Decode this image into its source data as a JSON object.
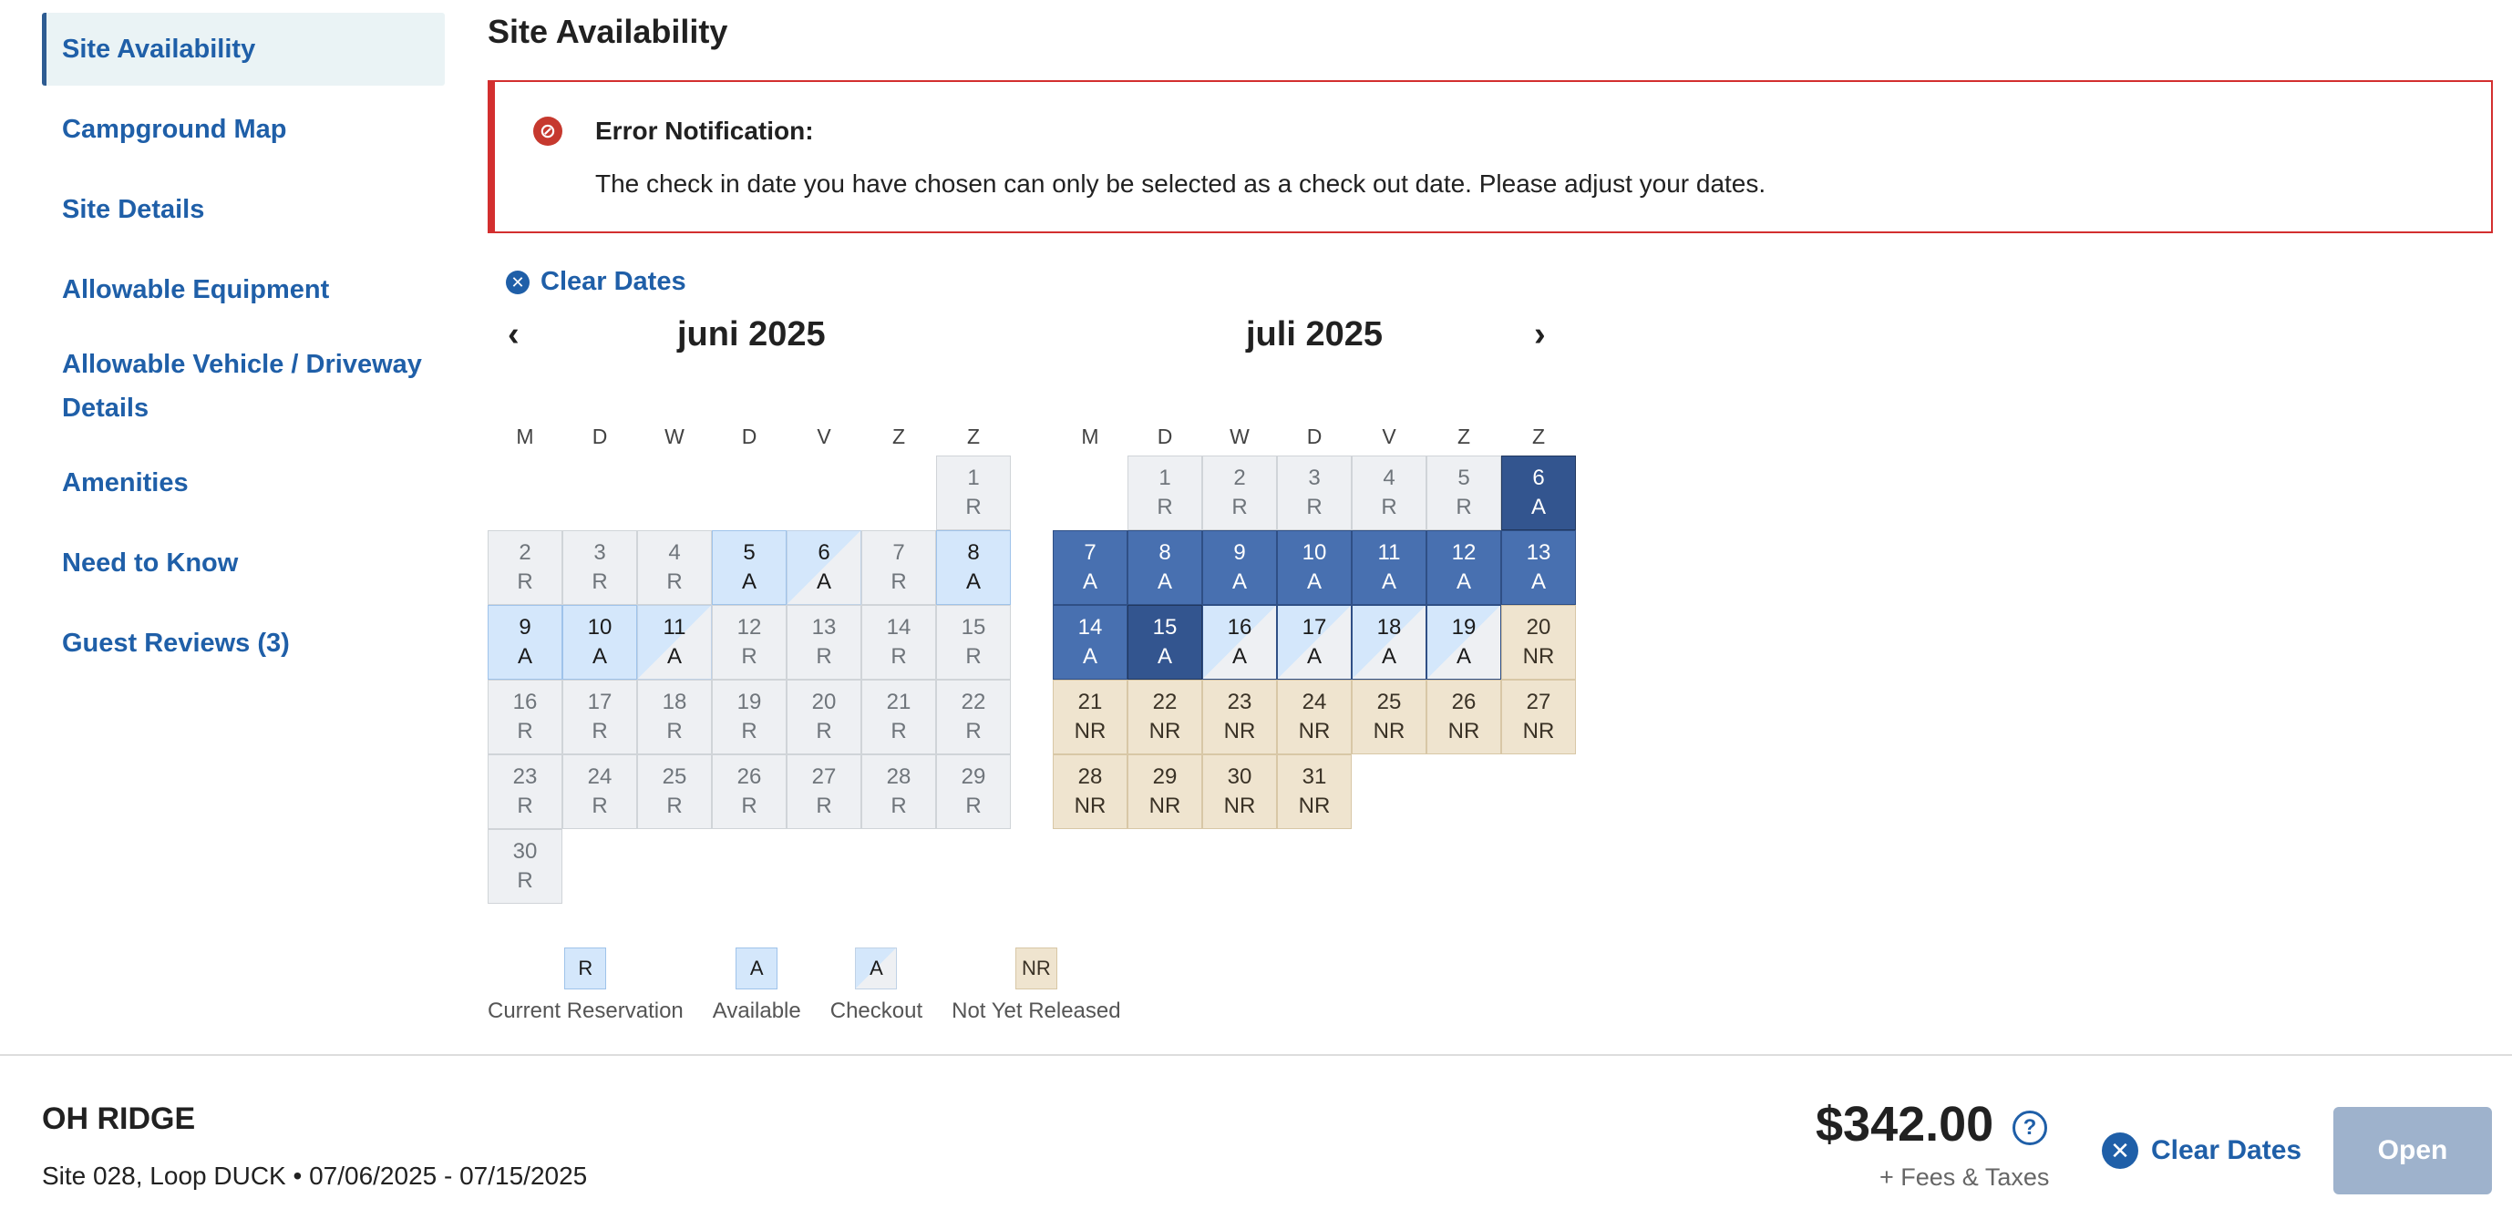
{
  "sidebar": {
    "items": [
      {
        "label": "Site Availability",
        "active": true
      },
      {
        "label": "Campground Map"
      },
      {
        "label": "Site Details"
      },
      {
        "label": "Allowable Equipment"
      },
      {
        "label": "Allowable Vehicle / Driveway Details"
      },
      {
        "label": "Amenities"
      },
      {
        "label": "Need to Know"
      },
      {
        "label": "Guest Reviews (3)"
      }
    ]
  },
  "main": {
    "title": "Site Availability",
    "alert": {
      "title": "Error Notification:",
      "message": "The check in date you have chosen can only be selected as a check out date. Please adjust your dates."
    },
    "clear_dates": "Clear Dates",
    "weekdays": [
      "M",
      "D",
      "W",
      "D",
      "V",
      "Z",
      "Z"
    ],
    "months": [
      {
        "title": "juni 2025",
        "offset": 6,
        "days": [
          {
            "n": "1",
            "c": "R",
            "s": "res"
          },
          {
            "n": "2",
            "c": "R",
            "s": "res"
          },
          {
            "n": "3",
            "c": "R",
            "s": "res"
          },
          {
            "n": "4",
            "c": "R",
            "s": "res"
          },
          {
            "n": "5",
            "c": "A",
            "s": "avail"
          },
          {
            "n": "6",
            "c": "A",
            "s": "check"
          },
          {
            "n": "7",
            "c": "R",
            "s": "res"
          },
          {
            "n": "8",
            "c": "A",
            "s": "avail"
          },
          {
            "n": "9",
            "c": "A",
            "s": "avail"
          },
          {
            "n": "10",
            "c": "A",
            "s": "avail"
          },
          {
            "n": "11",
            "c": "A",
            "s": "check"
          },
          {
            "n": "12",
            "c": "R",
            "s": "res"
          },
          {
            "n": "13",
            "c": "R",
            "s": "res"
          },
          {
            "n": "14",
            "c": "R",
            "s": "res"
          },
          {
            "n": "15",
            "c": "R",
            "s": "res"
          },
          {
            "n": "16",
            "c": "R",
            "s": "res"
          },
          {
            "n": "17",
            "c": "R",
            "s": "res"
          },
          {
            "n": "18",
            "c": "R",
            "s": "res"
          },
          {
            "n": "19",
            "c": "R",
            "s": "res"
          },
          {
            "n": "20",
            "c": "R",
            "s": "res"
          },
          {
            "n": "21",
            "c": "R",
            "s": "res"
          },
          {
            "n": "22",
            "c": "R",
            "s": "res"
          },
          {
            "n": "23",
            "c": "R",
            "s": "res"
          },
          {
            "n": "24",
            "c": "R",
            "s": "res"
          },
          {
            "n": "25",
            "c": "R",
            "s": "res"
          },
          {
            "n": "26",
            "c": "R",
            "s": "res"
          },
          {
            "n": "27",
            "c": "R",
            "s": "res"
          },
          {
            "n": "28",
            "c": "R",
            "s": "res"
          },
          {
            "n": "29",
            "c": "R",
            "s": "res"
          },
          {
            "n": "30",
            "c": "R",
            "s": "res"
          }
        ]
      },
      {
        "title": "juli 2025",
        "offset": 1,
        "days": [
          {
            "n": "1",
            "c": "R",
            "s": "res"
          },
          {
            "n": "2",
            "c": "R",
            "s": "res"
          },
          {
            "n": "3",
            "c": "R",
            "s": "res"
          },
          {
            "n": "4",
            "c": "R",
            "s": "res"
          },
          {
            "n": "5",
            "c": "R",
            "s": "res"
          },
          {
            "n": "6",
            "c": "A",
            "s": "seldark"
          },
          {
            "n": "7",
            "c": "A",
            "s": "sel"
          },
          {
            "n": "8",
            "c": "A",
            "s": "sel"
          },
          {
            "n": "9",
            "c": "A",
            "s": "sel"
          },
          {
            "n": "10",
            "c": "A",
            "s": "sel"
          },
          {
            "n": "11",
            "c": "A",
            "s": "sel"
          },
          {
            "n": "12",
            "c": "A",
            "s": "sel"
          },
          {
            "n": "13",
            "c": "A",
            "s": "sel"
          },
          {
            "n": "14",
            "c": "A",
            "s": "sel"
          },
          {
            "n": "15",
            "c": "A",
            "s": "seldark"
          },
          {
            "n": "16",
            "c": "A",
            "s": "selcheck"
          },
          {
            "n": "17",
            "c": "A",
            "s": "selcheck"
          },
          {
            "n": "18",
            "c": "A",
            "s": "selcheck"
          },
          {
            "n": "19",
            "c": "A",
            "s": "selcheck"
          },
          {
            "n": "20",
            "c": "NR",
            "s": "nr"
          },
          {
            "n": "21",
            "c": "NR",
            "s": "nr"
          },
          {
            "n": "22",
            "c": "NR",
            "s": "nr"
          },
          {
            "n": "23",
            "c": "NR",
            "s": "nr"
          },
          {
            "n": "24",
            "c": "NR",
            "s": "nr"
          },
          {
            "n": "25",
            "c": "NR",
            "s": "nr"
          },
          {
            "n": "26",
            "c": "NR",
            "s": "nr"
          },
          {
            "n": "27",
            "c": "NR",
            "s": "nr"
          },
          {
            "n": "28",
            "c": "NR",
            "s": "nr"
          },
          {
            "n": "29",
            "c": "NR",
            "s": "nr"
          },
          {
            "n": "30",
            "c": "NR",
            "s": "nr"
          },
          {
            "n": "31",
            "c": "NR",
            "s": "nr"
          }
        ]
      }
    ],
    "legend": [
      {
        "code": "R",
        "label": "Current Reservation",
        "s": "avail"
      },
      {
        "code": "A",
        "label": "Available",
        "s": "avail"
      },
      {
        "code": "A",
        "label": "Checkout",
        "s": "check"
      },
      {
        "code": "NR",
        "label": "Not Yet Released",
        "s": "nr"
      }
    ]
  },
  "footer": {
    "name": "OH RIDGE",
    "subtitle": "Site 028, Loop DUCK • 07/06/2025 - 07/15/2025",
    "price": "$342.00",
    "help_icon": "?",
    "fees": "+ Fees & Taxes",
    "clear_dates": "Clear Dates",
    "open": "Open"
  },
  "colors": {
    "accent": "#1f5fa8",
    "error": "#d32f2f",
    "selected": "#4870b0",
    "available": "#d4e7fb",
    "not_released": "#efe4cf"
  }
}
